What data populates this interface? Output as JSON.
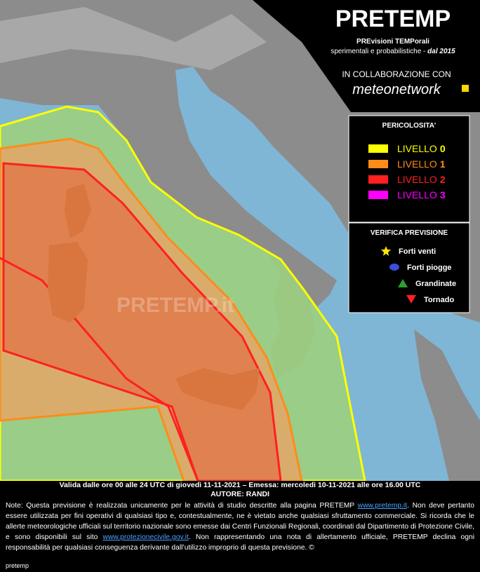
{
  "header": {
    "title": "PRETEMP",
    "subtitle": "PREvisioni TEMPorali",
    "tagline": "sperimentali e probabilistiche - ",
    "since": "dal 2015",
    "collab": "IN COLLABORAZIONE CON",
    "partner": "meteonetwork"
  },
  "legend": {
    "title": "PERICOLOSITA'",
    "levels": [
      {
        "label": "LIVELLO",
        "level": 0,
        "color": "#ffff00"
      },
      {
        "label": "LIVELLO",
        "level": 1,
        "color": "#ff8c1a"
      },
      {
        "label": "LIVELLO",
        "level": 2,
        "color": "#ff2020"
      },
      {
        "label": "LIVELLO",
        "level": 3,
        "color": "#ff00ff"
      }
    ]
  },
  "verification": {
    "title": "VERIFICA PREVISIONE",
    "items": [
      "Forti venti",
      "Forti piogge",
      "Grandinate",
      "Tornado"
    ]
  },
  "watermark": "PRETEMP.it",
  "footer": {
    "validity": "Valida dalle ore 00 alle 24 UTC di giovedì 11-11-2021 – Emessa: mercoledì 10-11-2021 alle ore 16.00 UTC",
    "author": "AUTORE: RANDI",
    "note": [
      "Note: Questa previsione è realizzata unicamente per le attività di studio descritte alla pagina PRETEMP ",
      "www.pretemp.it",
      ". Non deve pertanto essere utilizzata per fini operativi di qualsiasi tipo e, contestualmente, ne è vietato anche qualsiasi sfruttamento commerciale. Si ricorda che le allerte meteorologiche ufficiali sul territorio nazionale sono emesse dai Centri Funzionali Regionali, coordinati dal Dipartimento di Protezione Civile, e sono disponibili sul sito ",
      "www.protezionecivile.gov.it",
      ". Non rappresentando una nota di allertamento ufficiale, PRETEMP declina ogni responsabilità per qualsiasi conseguenza derivante dall’utilizzo improprio di questa previsione.   ©"
    ],
    "signature": "pretemp"
  }
}
